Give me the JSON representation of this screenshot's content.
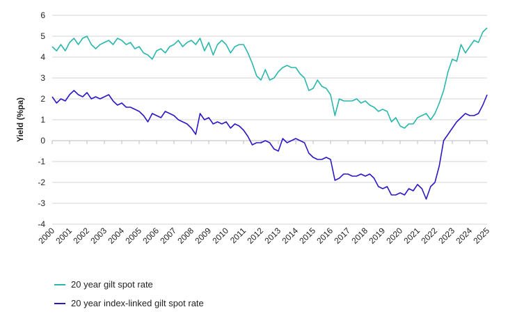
{
  "chart_data": {
    "type": "line",
    "ylabel": "Yield (%pa)",
    "xlabel": "",
    "ylim": [
      -4,
      6
    ],
    "yticks": [
      -4,
      -3,
      -2,
      -1,
      0,
      1,
      2,
      3,
      4,
      5,
      6
    ],
    "xlim": [
      2000,
      2025
    ],
    "xticks": [
      "2000",
      "2001",
      "2002",
      "2003",
      "2004",
      "2005",
      "2006",
      "2007",
      "2008",
      "2009",
      "2010",
      "2011",
      "2012",
      "2013",
      "2014",
      "2015",
      "2016",
      "2017",
      "2018",
      "2019",
      "2020",
      "2021",
      "2022",
      "2023",
      "2024",
      "2025"
    ],
    "grid": "horizontal",
    "legend_position": "bottom-left",
    "series": [
      {
        "name": "20 year gilt spot rate",
        "color": "#2ab7ac",
        "x": [
          2000.0,
          2000.25,
          2000.5,
          2000.75,
          2001.0,
          2001.25,
          2001.5,
          2001.75,
          2002.0,
          2002.25,
          2002.5,
          2002.75,
          2003.0,
          2003.25,
          2003.5,
          2003.75,
          2004.0,
          2004.25,
          2004.5,
          2004.75,
          2005.0,
          2005.25,
          2005.5,
          2005.75,
          2006.0,
          2006.25,
          2006.5,
          2006.75,
          2007.0,
          2007.25,
          2007.5,
          2007.75,
          2008.0,
          2008.25,
          2008.5,
          2008.75,
          2009.0,
          2009.25,
          2009.5,
          2009.75,
          2010.0,
          2010.25,
          2010.5,
          2010.75,
          2011.0,
          2011.25,
          2011.5,
          2011.75,
          2012.0,
          2012.25,
          2012.5,
          2012.75,
          2013.0,
          2013.25,
          2013.5,
          2013.75,
          2014.0,
          2014.25,
          2014.5,
          2014.75,
          2015.0,
          2015.25,
          2015.5,
          2015.75,
          2016.0,
          2016.25,
          2016.5,
          2016.75,
          2017.0,
          2017.25,
          2017.5,
          2017.75,
          2018.0,
          2018.25,
          2018.5,
          2018.75,
          2019.0,
          2019.25,
          2019.5,
          2019.75,
          2020.0,
          2020.25,
          2020.5,
          2020.75,
          2021.0,
          2021.25,
          2021.5,
          2021.75,
          2022.0,
          2022.25,
          2022.5,
          2022.75,
          2023.0,
          2023.25,
          2023.5,
          2023.75,
          2024.0,
          2024.25,
          2024.5,
          2024.75,
          2025.0
        ],
        "values": [
          4.5,
          4.3,
          4.6,
          4.3,
          4.7,
          4.9,
          4.6,
          4.9,
          5.0,
          4.6,
          4.4,
          4.6,
          4.7,
          4.8,
          4.6,
          4.9,
          4.8,
          4.6,
          4.7,
          4.4,
          4.5,
          4.2,
          4.1,
          3.9,
          4.3,
          4.4,
          4.2,
          4.5,
          4.6,
          4.8,
          4.5,
          4.7,
          4.8,
          4.6,
          4.9,
          4.3,
          4.7,
          4.1,
          4.6,
          4.8,
          4.6,
          4.2,
          4.5,
          4.6,
          4.6,
          4.2,
          3.7,
          3.1,
          2.9,
          3.4,
          2.9,
          3.0,
          3.3,
          3.5,
          3.6,
          3.5,
          3.5,
          3.2,
          3.0,
          2.4,
          2.5,
          2.9,
          2.6,
          2.5,
          2.2,
          1.2,
          2.0,
          1.9,
          1.9,
          1.9,
          2.0,
          1.8,
          1.9,
          1.7,
          1.6,
          1.4,
          1.5,
          1.4,
          0.9,
          1.1,
          0.7,
          0.6,
          0.8,
          0.8,
          1.1,
          1.2,
          1.3,
          1.0,
          1.3,
          1.8,
          2.4,
          3.3,
          3.9,
          3.8,
          4.6,
          4.2,
          4.5,
          4.8,
          4.7,
          5.2,
          5.4
        ]
      },
      {
        "name": "20 year index-linked gilt spot rate",
        "color": "#2b17c4",
        "x": [
          2000.0,
          2000.25,
          2000.5,
          2000.75,
          2001.0,
          2001.25,
          2001.5,
          2001.75,
          2002.0,
          2002.25,
          2002.5,
          2002.75,
          2003.0,
          2003.25,
          2003.5,
          2003.75,
          2004.0,
          2004.25,
          2004.5,
          2004.75,
          2005.0,
          2005.25,
          2005.5,
          2005.75,
          2006.0,
          2006.25,
          2006.5,
          2006.75,
          2007.0,
          2007.25,
          2007.5,
          2007.75,
          2008.0,
          2008.25,
          2008.5,
          2008.75,
          2009.0,
          2009.25,
          2009.5,
          2009.75,
          2010.0,
          2010.25,
          2010.5,
          2010.75,
          2011.0,
          2011.25,
          2011.5,
          2011.75,
          2012.0,
          2012.25,
          2012.5,
          2012.75,
          2013.0,
          2013.25,
          2013.5,
          2013.75,
          2014.0,
          2014.25,
          2014.5,
          2014.75,
          2015.0,
          2015.25,
          2015.5,
          2015.75,
          2016.0,
          2016.25,
          2016.5,
          2016.75,
          2017.0,
          2017.25,
          2017.5,
          2017.75,
          2018.0,
          2018.25,
          2018.5,
          2018.75,
          2019.0,
          2019.25,
          2019.5,
          2019.75,
          2020.0,
          2020.25,
          2020.5,
          2020.75,
          2021.0,
          2021.25,
          2021.5,
          2021.75,
          2022.0,
          2022.25,
          2022.5,
          2022.75,
          2023.0,
          2023.25,
          2023.5,
          2023.75,
          2024.0,
          2024.25,
          2024.5,
          2024.75,
          2025.0
        ],
        "values": [
          2.1,
          1.8,
          2.0,
          1.9,
          2.2,
          2.4,
          2.2,
          2.1,
          2.3,
          2.0,
          2.1,
          2.0,
          2.1,
          2.2,
          1.9,
          1.7,
          1.8,
          1.6,
          1.6,
          1.5,
          1.4,
          1.2,
          0.9,
          1.3,
          1.2,
          1.1,
          1.4,
          1.3,
          1.2,
          1.0,
          0.9,
          0.8,
          0.6,
          0.3,
          1.3,
          1.0,
          1.1,
          0.8,
          0.9,
          0.8,
          0.9,
          0.6,
          0.8,
          0.7,
          0.5,
          0.2,
          -0.2,
          -0.1,
          -0.1,
          0.0,
          -0.1,
          -0.4,
          -0.5,
          0.1,
          -0.1,
          0.0,
          0.1,
          0.0,
          -0.1,
          -0.6,
          -0.8,
          -0.9,
          -0.9,
          -0.8,
          -0.9,
          -1.9,
          -1.8,
          -1.6,
          -1.6,
          -1.7,
          -1.7,
          -1.6,
          -1.7,
          -1.6,
          -1.8,
          -2.2,
          -2.3,
          -2.2,
          -2.6,
          -2.6,
          -2.5,
          -2.6,
          -2.3,
          -2.4,
          -2.1,
          -2.3,
          -2.8,
          -2.2,
          -2.0,
          -1.2,
          0.0,
          0.3,
          0.6,
          0.9,
          1.1,
          1.3,
          1.2,
          1.2,
          1.3,
          1.7,
          2.2
        ]
      }
    ]
  }
}
